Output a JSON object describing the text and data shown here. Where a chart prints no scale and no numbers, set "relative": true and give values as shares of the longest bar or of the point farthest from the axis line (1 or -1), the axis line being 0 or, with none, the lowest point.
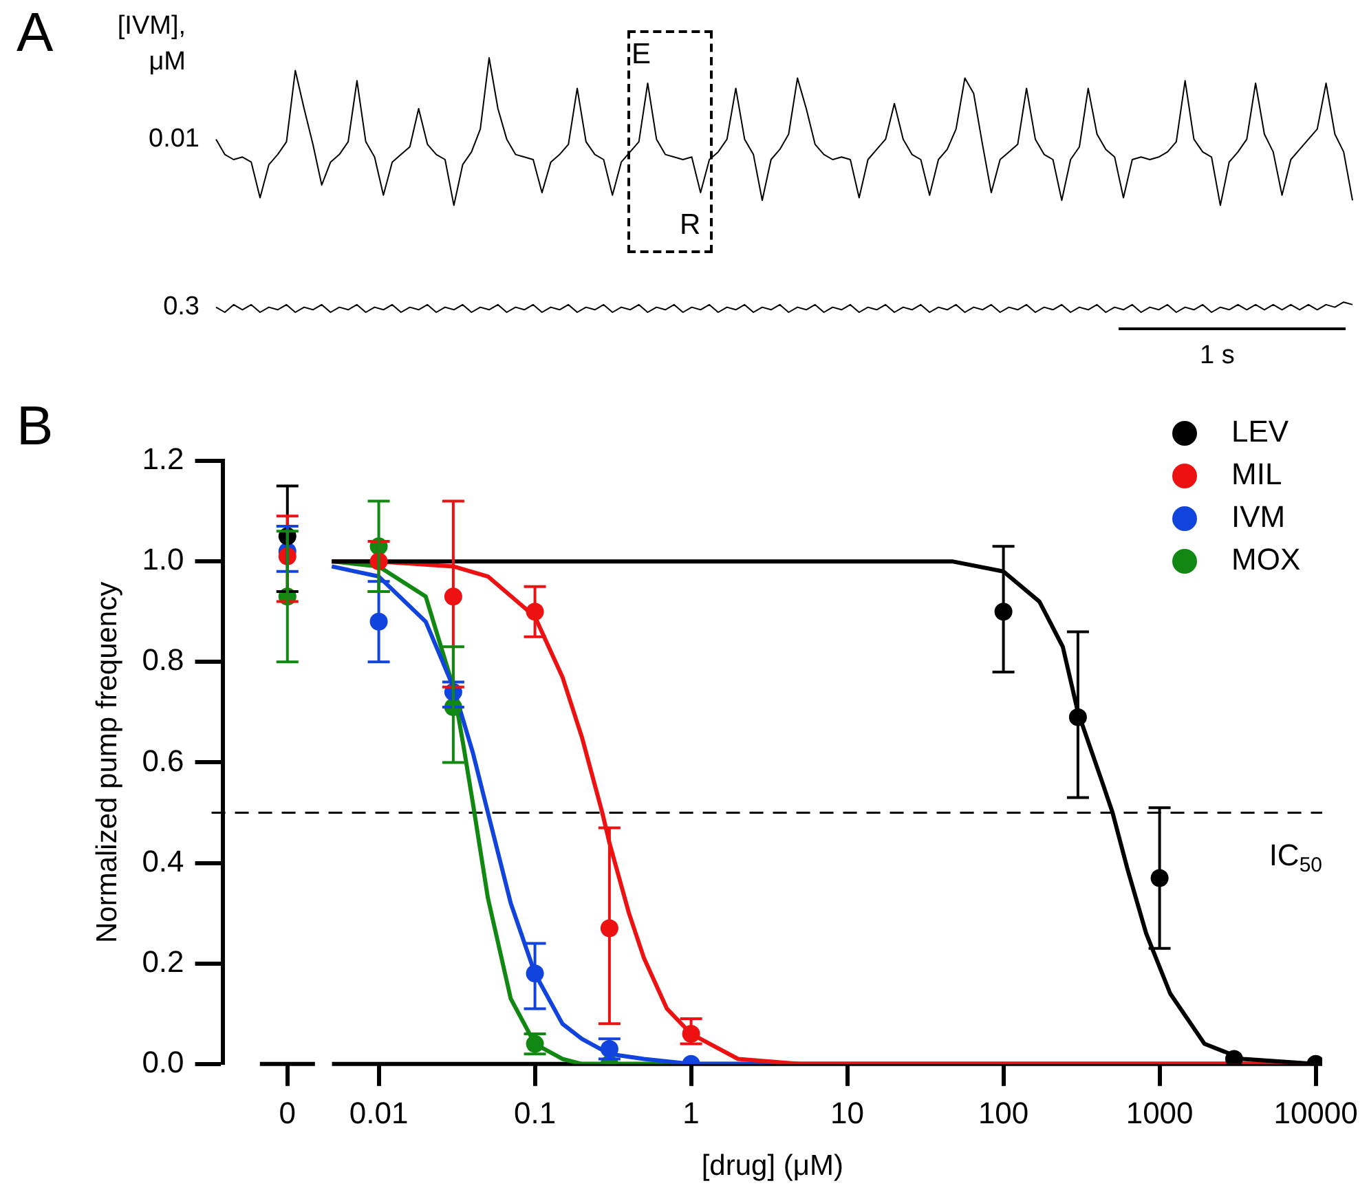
{
  "chart_data": [
    {
      "type": "line",
      "relative": true,
      "legend_title": "[IVM], μM",
      "grid": false,
      "legend": false,
      "marker": "none",
      "annotations": [
        "A",
        "E",
        "R",
        "1 s"
      ],
      "categories": [
        null,
        null,
        null,
        null,
        null,
        null,
        null,
        null,
        null,
        null,
        null,
        null,
        null,
        null,
        null,
        null,
        null,
        null,
        null,
        null,
        null,
        null,
        null,
        null,
        null,
        null,
        null,
        null,
        null,
        null,
        null,
        null,
        null,
        null,
        null,
        null,
        null,
        null,
        null,
        null,
        null,
        null,
        null,
        null,
        null,
        null,
        null,
        null,
        null,
        null,
        null,
        null,
        null,
        null,
        null,
        null,
        null,
        null,
        null,
        null,
        null,
        null,
        null,
        null,
        null,
        null,
        null,
        null,
        null,
        null,
        null,
        null,
        null,
        null,
        null,
        null,
        null,
        null,
        null,
        null,
        null,
        null,
        null,
        null,
        null,
        null,
        null,
        null,
        null,
        null,
        null,
        null,
        null,
        null,
        null,
        null,
        null,
        null,
        null,
        null,
        null,
        null,
        null,
        null,
        null,
        null,
        null,
        null,
        null,
        null,
        null,
        null,
        null,
        null,
        null,
        null,
        null,
        null,
        null,
        null,
        null,
        null,
        null,
        null,
        null,
        null,
        null,
        null,
        null,
        null
      ],
      "series": [
        {
          "name": "0.01",
          "color": "#000000",
          "values": [
            0.68,
            0.62,
            0.6,
            0.61,
            0.59,
            0.45,
            0.58,
            0.62,
            0.67,
            0.95,
            0.8,
            0.66,
            0.5,
            0.59,
            0.62,
            0.67,
            0.91,
            0.67,
            0.61,
            0.46,
            0.59,
            0.62,
            0.65,
            0.8,
            0.66,
            0.62,
            0.6,
            0.42,
            0.58,
            0.63,
            0.72,
            1,
            0.8,
            0.68,
            0.62,
            0.61,
            0.6,
            0.47,
            0.59,
            0.62,
            0.66,
            0.88,
            0.67,
            0.62,
            0.6,
            0.46,
            0.59,
            0.63,
            0.67,
            0.9,
            0.68,
            0.62,
            0.61,
            0.6,
            0.61,
            0.47,
            0.6,
            0.63,
            0.68,
            0.88,
            0.68,
            0.62,
            0.44,
            0.6,
            0.64,
            0.7,
            0.92,
            0.8,
            0.66,
            0.62,
            0.6,
            0.61,
            0.6,
            0.45,
            0.6,
            0.64,
            0.68,
            0.82,
            0.68,
            0.62,
            0.6,
            0.46,
            0.6,
            0.64,
            0.72,
            0.92,
            0.86,
            0.66,
            0.47,
            0.6,
            0.63,
            0.66,
            0.88,
            0.68,
            0.62,
            0.6,
            0.44,
            0.6,
            0.65,
            0.88,
            0.7,
            0.64,
            0.61,
            0.45,
            0.6,
            0.61,
            0.6,
            0.61,
            0.63,
            0.67,
            0.91,
            0.68,
            0.63,
            0.61,
            0.42,
            0.59,
            0.63,
            0.68,
            0.9,
            0.7,
            0.63,
            0.46,
            0.6,
            0.64,
            0.68,
            0.72,
            0.9,
            0.7,
            0.63,
            0.44
          ]
        },
        {
          "name": "0.3",
          "color": "#000000",
          "values": [
            0.02,
            0,
            0.03,
            0.01,
            0.03,
            0,
            0.02,
            0.01,
            0.03,
            0,
            0.02,
            0.01,
            0.03,
            0,
            0.02,
            0.01,
            0.03,
            0,
            0.02,
            0.01,
            0.03,
            0,
            0.02,
            0.01,
            0.03,
            0,
            0.02,
            0.01,
            0.03,
            0,
            0.02,
            0.01,
            0.03,
            0,
            0.02,
            0.01,
            0.03,
            0,
            0.02,
            0.01,
            0.03,
            0,
            0.02,
            0.01,
            0.03,
            0,
            0.02,
            0.01,
            0.03,
            0,
            0.02,
            0.01,
            0.03,
            0,
            0.02,
            0.01,
            0.03,
            0,
            0.02,
            0.01,
            0.03,
            0,
            0.02,
            0.01,
            0.03,
            0,
            0.02,
            0.01,
            0.03,
            0,
            0.02,
            0.01,
            0.03,
            0,
            0.02,
            0.01,
            0.03,
            0,
            0.02,
            0.01,
            0.03,
            0,
            0.02,
            0.01,
            0.03,
            0,
            0.02,
            0.01,
            0.03,
            0,
            0.02,
            0.01,
            0.03,
            0,
            0.02,
            0.01,
            0.03,
            0,
            0.02,
            0.01,
            0.03,
            0,
            0.02,
            0.01,
            0.03,
            0,
            0.02,
            0.01,
            0.03,
            0,
            0.02,
            0.01,
            0.03,
            0,
            0.02,
            0.01,
            0.03,
            0.01,
            0.03,
            0.01,
            0.03,
            0.01,
            0.03,
            0.01,
            0.03,
            0.01,
            0.03,
            0.02,
            0.04,
            0.03
          ]
        }
      ]
    },
    {
      "type": "scatter",
      "ylabel": "Normalized pump frequency",
      "xlabel": "[drug] (μM)",
      "log": "x",
      "grid": false,
      "legend": "top right",
      "marker": "circle",
      "annotations": [
        "B"
      ],
      "xlim": [
        0.001,
        11000
      ],
      "xticks": [
        {
          "value": 0.0026,
          "label": "0"
        },
        0.01,
        0.1,
        1,
        10,
        100,
        1000,
        10000
      ],
      "ylim": [
        0,
        1.2
      ],
      "yticks": [
        {
          "value": 0,
          "label": "0.0"
        },
        0.2,
        0.4,
        0.6,
        0.8,
        {
          "value": 1,
          "label": "1.0"
        },
        1.2
      ],
      "ref_lines": [
        {
          "axis": "y",
          "value": 0.5,
          "label": "IC$_{50}$",
          "line_style": "dashed",
          "color": "#000000"
        }
      ],
      "series": [
        {
          "name": "LEV",
          "type": "scatter",
          "color": "#000000",
          "x": [
            0.0026,
            100,
            300,
            1000,
            3000,
            10000
          ],
          "values": [
            1.05,
            0.9,
            0.69,
            0.37,
            0.01,
            0
          ],
          "errors": [
            [
              0.94,
              1.15
            ],
            [
              0.78,
              1.03
            ],
            [
              0.53,
              0.86
            ],
            [
              0.23,
              0.51
            ],
            null,
            null
          ]
        },
        {
          "name": "MIL",
          "type": "scatter",
          "color": "#ee1111",
          "x": [
            0.0026,
            0.01,
            0.03,
            0.1,
            0.3,
            1
          ],
          "values": [
            1.01,
            1.0,
            0.93,
            0.9,
            0.27,
            0.06
          ],
          "errors": [
            [
              0.92,
              1.09
            ],
            [
              0.94,
              1.04
            ],
            [
              0.75,
              1.12
            ],
            [
              0.85,
              0.95
            ],
            [
              0.08,
              0.47
            ],
            [
              0.04,
              0.09
            ]
          ]
        },
        {
          "name": "IVM",
          "type": "scatter",
          "color": "#1144dd",
          "x": [
            0.0026,
            0.01,
            0.03,
            0.1,
            0.3,
            1
          ],
          "values": [
            1.02,
            0.88,
            0.74,
            0.18,
            0.03,
            0
          ],
          "errors": [
            [
              0.98,
              1.07
            ],
            [
              0.8,
              0.96
            ],
            [
              0.71,
              0.76
            ],
            [
              0.11,
              0.24
            ],
            [
              0.01,
              0.05
            ],
            null
          ]
        },
        {
          "name": "MOX",
          "type": "scatter",
          "color": "#118811",
          "x": [
            0.0026,
            0.01,
            0.03,
            0.1,
            0.3
          ],
          "values": [
            0.93,
            1.03,
            0.71,
            0.04,
            0
          ],
          "errors": [
            [
              0.8,
              1.06
            ],
            [
              0.94,
              1.12
            ],
            [
              0.6,
              0.83
            ],
            [
              0.02,
              0.06
            ],
            null
          ]
        },
        {
          "type": "line",
          "marker": "none",
          "color": "#000000",
          "x": [
            0.005,
            47,
            100,
            170,
            240,
            300,
            430,
            500,
            620,
            820,
            1170,
            1940,
            3430,
            10000
          ],
          "values": [
            1,
            1,
            0.98,
            0.92,
            0.83,
            0.7,
            0.56,
            0.5,
            0.39,
            0.26,
            0.14,
            0.04,
            0.01,
            0
          ]
        },
        {
          "type": "line",
          "marker": "none",
          "color": "#ee1111",
          "x": [
            0.005,
            0.01,
            0.03,
            0.05,
            0.1,
            0.15,
            0.2,
            0.27,
            0.3,
            0.4,
            0.5,
            0.7,
            1,
            2,
            5,
            10000
          ],
          "values": [
            1,
            1,
            0.99,
            0.97,
            0.89,
            0.77,
            0.65,
            0.5,
            0.44,
            0.3,
            0.21,
            0.11,
            0.06,
            0.01,
            0,
            0
          ]
        },
        {
          "type": "line",
          "marker": "none",
          "color": "#1144dd",
          "x": [
            0.005,
            0.01,
            0.02,
            0.03,
            0.04,
            0.05,
            0.07,
            0.1,
            0.15,
            0.2,
            0.3,
            0.5,
            1,
            10000
          ],
          "values": [
            0.99,
            0.97,
            0.88,
            0.75,
            0.62,
            0.5,
            0.32,
            0.18,
            0.08,
            0.05,
            0.02,
            0.01,
            0,
            0
          ]
        },
        {
          "type": "line",
          "marker": "none",
          "color": "#118811",
          "x": [
            0.005,
            0.01,
            0.02,
            0.03,
            0.035,
            0.04,
            0.05,
            0.07,
            0.1,
            0.15,
            0.2,
            0.5,
            10000
          ],
          "values": [
            1,
            0.99,
            0.93,
            0.75,
            0.63,
            0.52,
            0.33,
            0.13,
            0.04,
            0.01,
            0,
            0,
            0
          ]
        }
      ]
    }
  ]
}
